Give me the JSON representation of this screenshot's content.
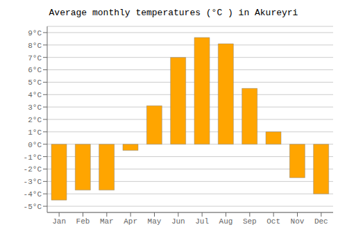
{
  "chart_data": {
    "type": "bar",
    "title": "Average monthly temperatures (°C ) in Akureyri",
    "categories": [
      "Jan",
      "Feb",
      "Mar",
      "Apr",
      "May",
      "Jun",
      "Jul",
      "Aug",
      "Sep",
      "Oct",
      "Nov",
      "Dec"
    ],
    "values": [
      -4.5,
      -3.7,
      -3.7,
      -0.5,
      3.1,
      7.0,
      8.6,
      8.1,
      4.5,
      1.0,
      -2.7,
      -4.0
    ],
    "color": "#FFA500",
    "ylim": [
      -5.5,
      9.5
    ],
    "yticks": [
      {
        "value": -5,
        "label": "-5°C"
      },
      {
        "value": -4,
        "label": "-4°C"
      },
      {
        "value": -3,
        "label": "-3°C"
      },
      {
        "value": -2,
        "label": "-2°C"
      },
      {
        "value": -1,
        "label": "-1°C"
      },
      {
        "value": 0,
        "label": "0°C"
      },
      {
        "value": 1,
        "label": "1°C"
      },
      {
        "value": 2,
        "label": "2°C"
      },
      {
        "value": 3,
        "label": "3°C"
      },
      {
        "value": 4,
        "label": "4°C"
      },
      {
        "value": 5,
        "label": "5°C"
      },
      {
        "value": 6,
        "label": "6°C"
      },
      {
        "value": 7,
        "label": "7°C"
      },
      {
        "value": 8,
        "label": "8°C"
      },
      {
        "value": 9,
        "label": "9°C"
      }
    ],
    "grid": true
  }
}
